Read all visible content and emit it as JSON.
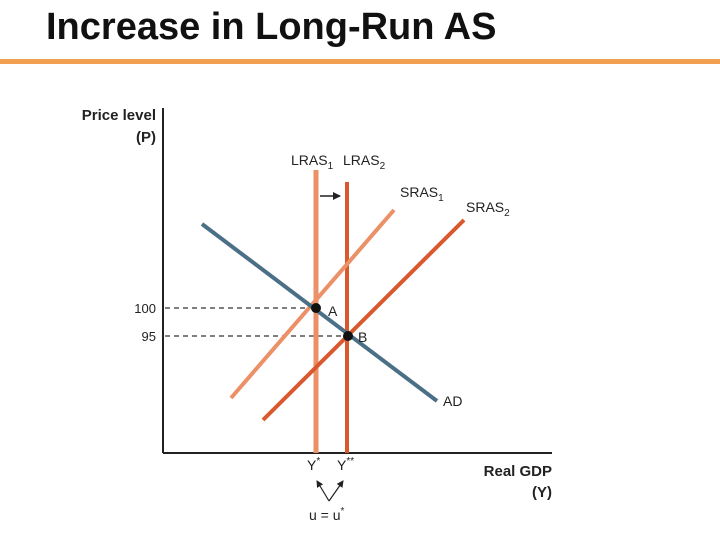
{
  "slide": {
    "title": "Increase in Long-Run AS",
    "accent_color": "#f0a050"
  },
  "diagram": {
    "y_axis_label_line1": "Price level",
    "y_axis_label_line2": "(P)",
    "x_axis_label_line1": "Real GDP",
    "x_axis_label_line2": "(Y)",
    "price_tick_high": "100",
    "price_tick_low": "95",
    "curves": {
      "lras1": {
        "base": "LRAS",
        "sub": "1",
        "color": "#ec9068"
      },
      "lras2": {
        "base": "LRAS",
        "sub": "2",
        "color": "#d9582e"
      },
      "sras1": {
        "base": "SRAS",
        "sub": "1",
        "color": "#ec9068"
      },
      "sras2": {
        "base": "SRAS",
        "sub": "2",
        "color": "#d9582e"
      },
      "ad": {
        "label": "AD",
        "color": "#4b6f86"
      }
    },
    "points": {
      "a": "A",
      "b": "B"
    },
    "output_labels": {
      "y_star": {
        "base": "Y",
        "sup": "*"
      },
      "y_double_star": {
        "base": "Y",
        "sup": "**"
      }
    },
    "unemployment_label": {
      "text": "u = u",
      "sup": "*"
    },
    "shift_arrow": "right"
  }
}
